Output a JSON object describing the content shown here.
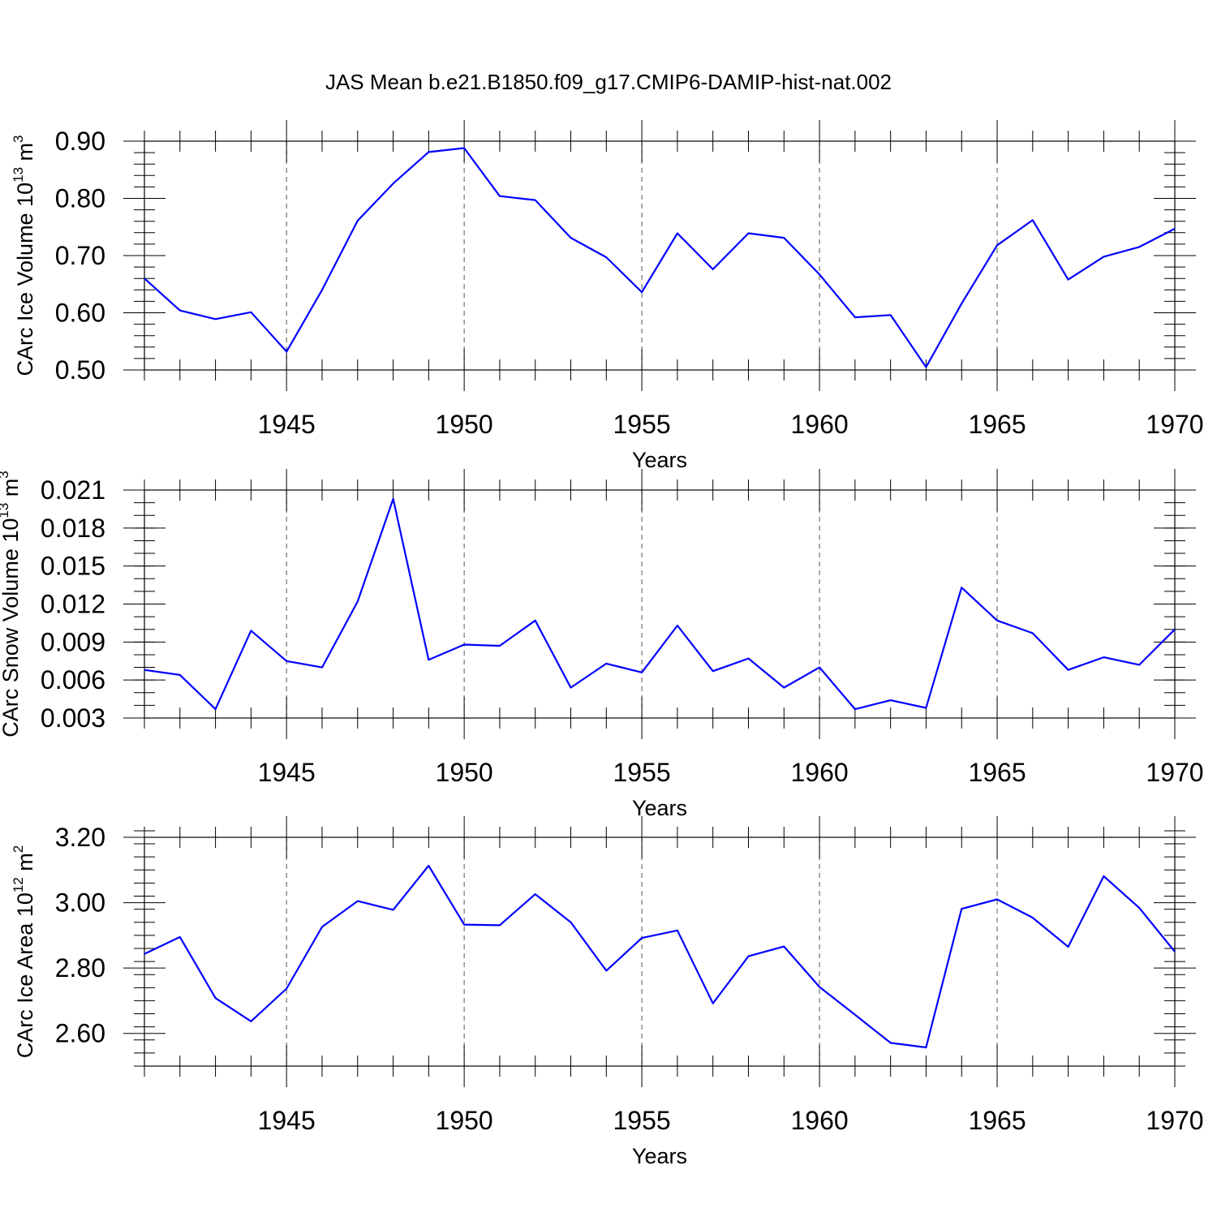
{
  "chart_data": [
    {
      "type": "line",
      "title": "JAS Mean b.e21.B1850.f09_g17.CMIP6-DAMIP-hist-nat.002",
      "xlabel": "Years",
      "ylabel": {
        "text": "CArc Ice Volume 10",
        "sup": "13",
        "unit": " m",
        "unit_sup": "3"
      },
      "xlim": [
        1941,
        1970
      ],
      "ylim": [
        0.5,
        0.9
      ],
      "xticks": [
        1945,
        1950,
        1955,
        1960,
        1965,
        1970
      ],
      "yticks": [
        0.5,
        0.6,
        0.7,
        0.8,
        0.9
      ],
      "ytick_labels": [
        "0.50",
        "0.60",
        "0.70",
        "0.80",
        "0.90"
      ],
      "yminor_step": 0.02,
      "color": "#0000ff",
      "x": [
        1941,
        1942,
        1943,
        1944,
        1945,
        1946,
        1947,
        1948,
        1949,
        1950,
        1951,
        1952,
        1953,
        1954,
        1955,
        1956,
        1957,
        1958,
        1959,
        1960,
        1961,
        1962,
        1963,
        1964,
        1965,
        1966,
        1967,
        1968,
        1969,
        1970
      ],
      "values": [
        0.66,
        0.604,
        0.589,
        0.601,
        0.532,
        0.64,
        0.761,
        0.826,
        0.881,
        0.888,
        0.804,
        0.797,
        0.731,
        0.697,
        0.636,
        0.739,
        0.676,
        0.739,
        0.731,
        0.667,
        0.592,
        0.596,
        0.505,
        0.616,
        0.718,
        0.762,
        0.658,
        0.698,
        0.715,
        0.747
      ]
    },
    {
      "type": "line",
      "title": "",
      "xlabel": "Years",
      "ylabel": {
        "text": "CArc Snow Volume 10",
        "sup": "13",
        "unit": " m",
        "unit_sup": "3"
      },
      "xlim": [
        1941,
        1970
      ],
      "ylim": [
        0.003,
        0.021
      ],
      "xticks": [
        1945,
        1950,
        1955,
        1960,
        1965,
        1970
      ],
      "yticks": [
        0.003,
        0.006,
        0.009,
        0.012,
        0.015,
        0.018,
        0.021
      ],
      "ytick_labels": [
        "0.003",
        "0.006",
        "0.009",
        "0.012",
        "0.015",
        "0.018",
        "0.021"
      ],
      "yminor_step": 0.001,
      "color": "#0000ff",
      "x": [
        1941,
        1942,
        1943,
        1944,
        1945,
        1946,
        1947,
        1948,
        1949,
        1950,
        1951,
        1952,
        1953,
        1954,
        1955,
        1956,
        1957,
        1958,
        1959,
        1960,
        1961,
        1962,
        1963,
        1964,
        1965,
        1966,
        1967,
        1968,
        1969,
        1970
      ],
      "values": [
        0.0068,
        0.0064,
        0.0037,
        0.0099,
        0.0075,
        0.007,
        0.0122,
        0.0203,
        0.0076,
        0.0088,
        0.0087,
        0.0107,
        0.0054,
        0.0073,
        0.0066,
        0.0103,
        0.0067,
        0.0077,
        0.0054,
        0.007,
        0.0037,
        0.0044,
        0.0038,
        0.0133,
        0.0107,
        0.0097,
        0.0068,
        0.0078,
        0.0072,
        0.01
      ]
    },
    {
      "type": "line",
      "title": "",
      "xlabel": "Years",
      "ylabel": {
        "text": "CArc Ice Area 10",
        "sup": "12",
        "unit": " m",
        "unit_sup": "2"
      },
      "xlim": [
        1941,
        1970
      ],
      "ylim": [
        2.5,
        3.2
      ],
      "xticks": [
        1945,
        1950,
        1955,
        1960,
        1965,
        1970
      ],
      "yticks": [
        2.6,
        2.8,
        3.0,
        3.2
      ],
      "ytick_labels": [
        "2.60",
        "2.80",
        "3.00",
        "3.20"
      ],
      "yminor_step": 0.04,
      "color": "#0000ff",
      "x": [
        1941,
        1942,
        1943,
        1944,
        1945,
        1946,
        1947,
        1948,
        1949,
        1950,
        1951,
        1952,
        1953,
        1954,
        1955,
        1956,
        1957,
        1958,
        1959,
        1960,
        1961,
        1962,
        1963,
        1964,
        1965,
        1966,
        1967,
        1968,
        1969,
        1970
      ],
      "values": [
        2.843,
        2.895,
        2.708,
        2.637,
        2.737,
        2.926,
        3.005,
        2.978,
        3.113,
        2.933,
        2.931,
        3.026,
        2.94,
        2.792,
        2.892,
        2.915,
        2.692,
        2.836,
        2.866,
        2.742,
        2.657,
        2.571,
        2.557,
        2.981,
        3.01,
        2.954,
        2.865,
        3.081,
        2.984,
        2.85
      ]
    }
  ]
}
